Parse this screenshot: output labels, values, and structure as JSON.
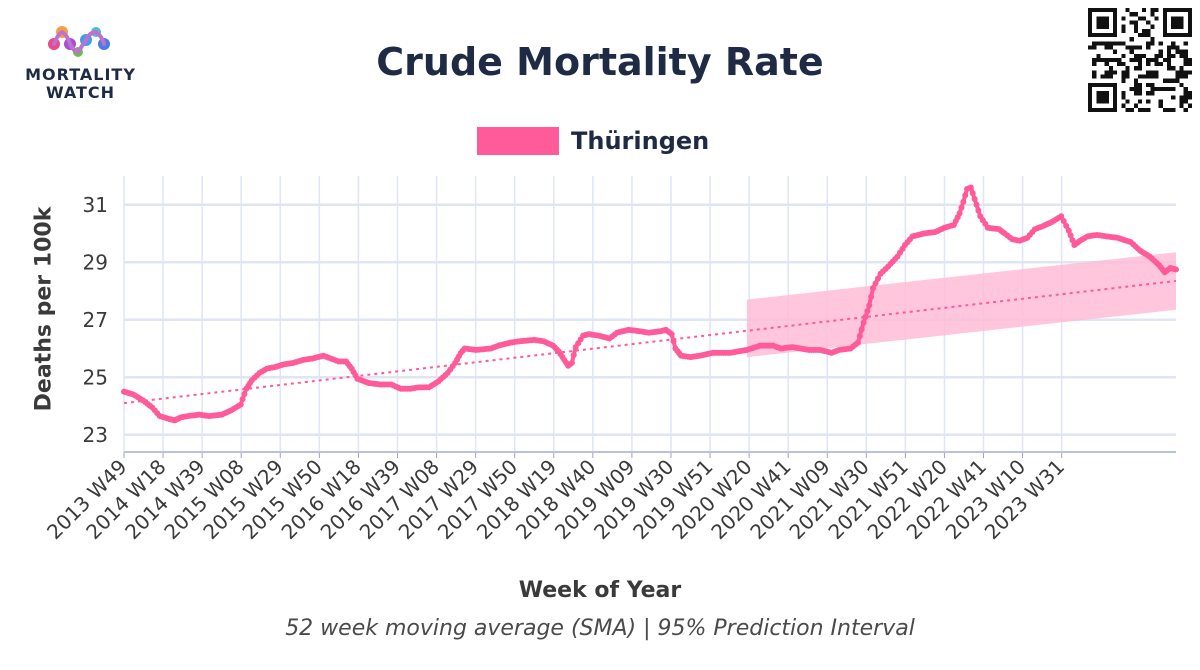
{
  "logo": {
    "line1": "MORTALITY",
    "line2": "WATCH"
  },
  "title": "Crude Mortality Rate",
  "subtitle": "52 week moving average (SMA) | 95% Prediction Interval",
  "colors": {
    "series": "#ff5a9a",
    "band": "#ffbcd6",
    "trend": "#ff5a9a",
    "grid": "#dfe5f5",
    "text": "#1f2a44"
  },
  "chart_data": {
    "type": "line",
    "title": "Crude Mortality Rate",
    "xlabel": "Week of Year",
    "ylabel": "Deaths per 100k",
    "ylim": [
      22.4,
      32.0
    ],
    "yticks": [
      23,
      25,
      27,
      29,
      31
    ],
    "categories": [
      "2013 W49",
      "2014 W18",
      "2014 W39",
      "2015 W08",
      "2015 W29",
      "2015 W50",
      "2016 W18",
      "2016 W39",
      "2017 W08",
      "2017 W29",
      "2017 W50",
      "2018 W19",
      "2018 W40",
      "2019 W09",
      "2019 W30",
      "2019 W51",
      "2020 W20",
      "2020 W41",
      "2021 W09",
      "2021 W30",
      "2021 W51",
      "2022 W20",
      "2022 W41",
      "2023 W10",
      "2023 W31"
    ],
    "x_span_weeks": 519,
    "legend": {
      "position": "top-center",
      "entries": [
        "Thüringen"
      ]
    },
    "grid": true,
    "series": [
      {
        "name": "Thüringen",
        "style": "line-with-markers",
        "points": [
          [
            0,
            24.5
          ],
          [
            5,
            24.4
          ],
          [
            10,
            24.2
          ],
          [
            15,
            23.95
          ],
          [
            19,
            23.65
          ],
          [
            24,
            23.55
          ],
          [
            27,
            23.5
          ],
          [
            30,
            23.6
          ],
          [
            34,
            23.65
          ],
          [
            40,
            23.7
          ],
          [
            45,
            23.65
          ],
          [
            52,
            23.7
          ],
          [
            57,
            23.85
          ],
          [
            62,
            24.05
          ],
          [
            65,
            24.6
          ],
          [
            68,
            24.9
          ],
          [
            72,
            25.15
          ],
          [
            76,
            25.3
          ],
          [
            80,
            25.35
          ],
          [
            85,
            25.45
          ],
          [
            90,
            25.5
          ],
          [
            95,
            25.6
          ],
          [
            100,
            25.65
          ],
          [
            106,
            25.75
          ],
          [
            110,
            25.65
          ],
          [
            114,
            25.55
          ],
          [
            118,
            25.55
          ],
          [
            121,
            25.3
          ],
          [
            124,
            24.95
          ],
          [
            130,
            24.8
          ],
          [
            136,
            24.75
          ],
          [
            142,
            24.75
          ],
          [
            147,
            24.6
          ],
          [
            152,
            24.6
          ],
          [
            157,
            24.65
          ],
          [
            162,
            24.65
          ],
          [
            167,
            24.85
          ],
          [
            172,
            25.15
          ],
          [
            176,
            25.5
          ],
          [
            179,
            25.85
          ],
          [
            181,
            26.0
          ],
          [
            187,
            25.95
          ],
          [
            195,
            26.0
          ],
          [
            199,
            26.1
          ],
          [
            205,
            26.2
          ],
          [
            210,
            26.25
          ],
          [
            218,
            26.3
          ],
          [
            223,
            26.25
          ],
          [
            228,
            26.1
          ],
          [
            231,
            25.9
          ],
          [
            234,
            25.6
          ],
          [
            236,
            25.4
          ],
          [
            238,
            25.5
          ],
          [
            240,
            26.05
          ],
          [
            244,
            26.45
          ],
          [
            247,
            26.5
          ],
          [
            252,
            26.45
          ],
          [
            258,
            26.35
          ],
          [
            262,
            26.55
          ],
          [
            268,
            26.65
          ],
          [
            274,
            26.6
          ],
          [
            279,
            26.55
          ],
          [
            285,
            26.6
          ],
          [
            288,
            26.65
          ],
          [
            291,
            26.5
          ],
          [
            293,
            26.0
          ],
          [
            296,
            25.75
          ],
          [
            301,
            25.7
          ],
          [
            306,
            25.75
          ],
          [
            313,
            25.85
          ],
          [
            322,
            25.85
          ],
          [
            331,
            25.95
          ],
          [
            338,
            26.1
          ],
          [
            345,
            26.1
          ],
          [
            349,
            26.0
          ],
          [
            355,
            26.05
          ],
          [
            364,
            25.95
          ],
          [
            370,
            25.95
          ],
          [
            376,
            25.85
          ],
          [
            380,
            25.95
          ],
          [
            386,
            26.0
          ],
          [
            390,
            26.2
          ],
          [
            393,
            26.9
          ],
          [
            396,
            27.5
          ],
          [
            398,
            28.1
          ],
          [
            402,
            28.6
          ],
          [
            406,
            28.85
          ],
          [
            411,
            29.2
          ],
          [
            415,
            29.6
          ],
          [
            419,
            29.9
          ],
          [
            425,
            30.0
          ],
          [
            431,
            30.05
          ],
          [
            436,
            30.2
          ],
          [
            441,
            30.3
          ],
          [
            444,
            30.7
          ],
          [
            446,
            31.1
          ],
          [
            448,
            31.55
          ],
          [
            450,
            31.6
          ],
          [
            452,
            31.2
          ],
          [
            455,
            30.6
          ],
          [
            459,
            30.2
          ],
          [
            465,
            30.15
          ],
          [
            468,
            30.0
          ],
          [
            472,
            29.8
          ],
          [
            476,
            29.75
          ],
          [
            480,
            29.85
          ],
          [
            484,
            30.15
          ],
          [
            488,
            30.25
          ],
          [
            493,
            30.4
          ],
          [
            498,
            30.6
          ],
          [
            502,
            30.1
          ],
          [
            505,
            29.6
          ],
          [
            508,
            29.75
          ],
          [
            512,
            29.9
          ],
          [
            517,
            29.95
          ],
          [
            522,
            29.9
          ],
          [
            528,
            29.85
          ],
          [
            535,
            29.7
          ],
          [
            540,
            29.4
          ],
          [
            545,
            29.2
          ],
          [
            550,
            28.9
          ],
          [
            553,
            28.65
          ],
          [
            556,
            28.8
          ],
          [
            559,
            28.75
          ]
        ]
      }
    ],
    "trend": {
      "name": "trend",
      "from": [
        0,
        24.1
      ],
      "to": [
        559,
        28.35
      ]
    },
    "prediction_interval": {
      "name": "95% Prediction Interval",
      "start": 331,
      "end": 559,
      "lower_start": 25.7,
      "lower_end": 27.35,
      "upper_start": 27.7,
      "upper_end": 29.35
    }
  }
}
